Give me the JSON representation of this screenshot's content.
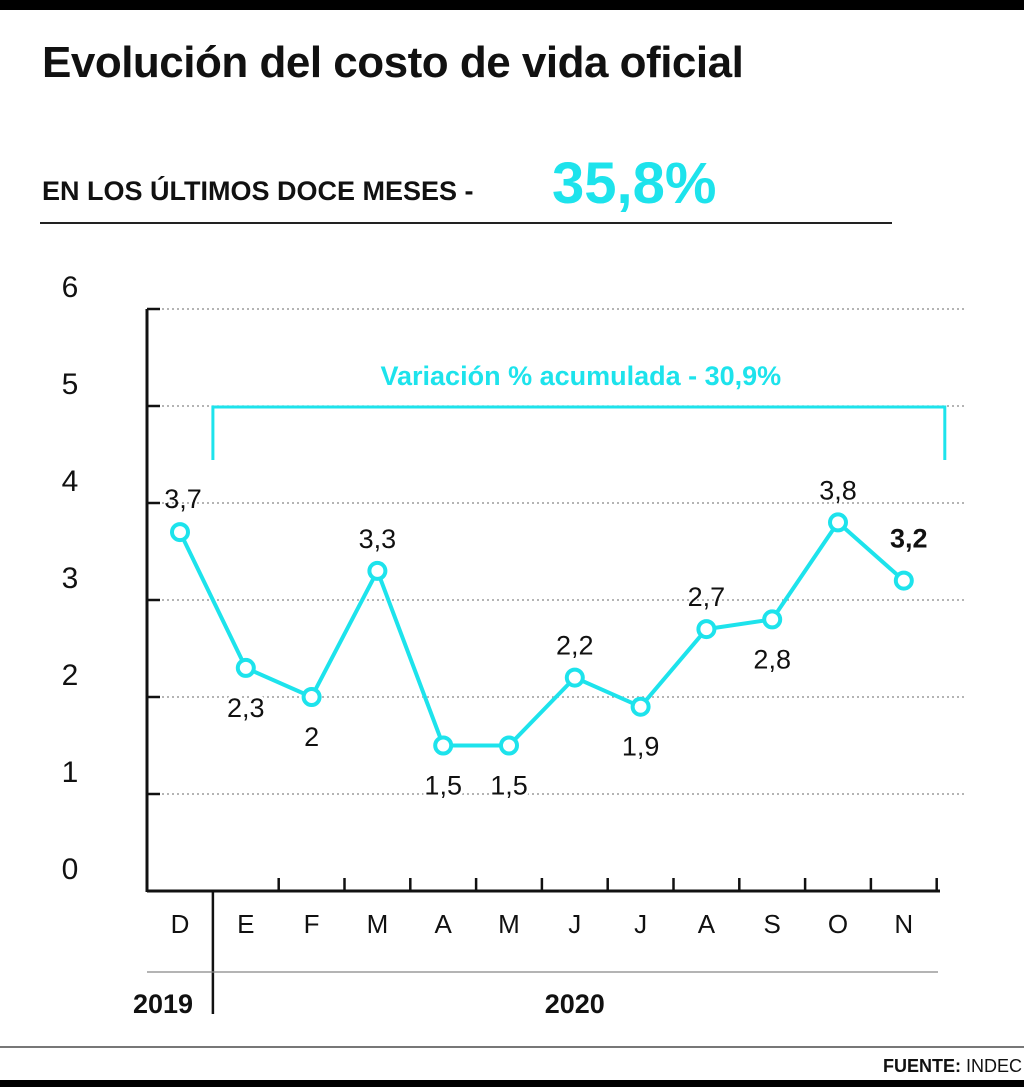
{
  "header": {
    "title": "Evolución del costo de vida oficial",
    "subtitle": "EN LOS ÚLTIMOS DOCE MESES -",
    "headline_value": "35,8%"
  },
  "footer": {
    "source_label": "FUENTE:",
    "source_name": "INDEC"
  },
  "colors": {
    "accent": "#1de3ec",
    "text": "#111111",
    "grid": "#888888"
  },
  "chart_data": {
    "type": "line",
    "title": "Evolución del costo de vida oficial",
    "subtitle": "EN LOS ÚLTIMOS DOCE MESES - 35,8%",
    "xlabel": "",
    "ylabel": "",
    "ylim": [
      0,
      6
    ],
    "yticks": [
      "0",
      "1",
      "2",
      "3",
      "4",
      "5",
      "6"
    ],
    "grid": "horizontal dotted",
    "categories": [
      "D",
      "E",
      "F",
      "M",
      "A",
      "M",
      "J",
      "J",
      "A",
      "S",
      "O",
      "N"
    ],
    "years": [
      {
        "label": "2019",
        "from": 0,
        "to": 0
      },
      {
        "label": "2020",
        "from": 1,
        "to": 11
      }
    ],
    "series": [
      {
        "values": [
          3.7,
          2.3,
          2.0,
          3.3,
          1.5,
          1.5,
          2.2,
          1.9,
          2.7,
          2.8,
          3.8,
          3.2
        ],
        "labels": [
          "3,7",
          "2,3",
          "2",
          "3,3",
          "1,5",
          "1,5",
          "2,2",
          "1,9",
          "2,7",
          "2,8",
          "3,8",
          "3,2"
        ],
        "label_position": [
          "above",
          "below",
          "below",
          "above",
          "below",
          "below",
          "above",
          "below",
          "above",
          "below",
          "above",
          "above"
        ],
        "highlight_last": true
      }
    ],
    "annotation": {
      "text": "Variación % acumulada - 30,9%",
      "from": 1,
      "to": 11
    }
  }
}
